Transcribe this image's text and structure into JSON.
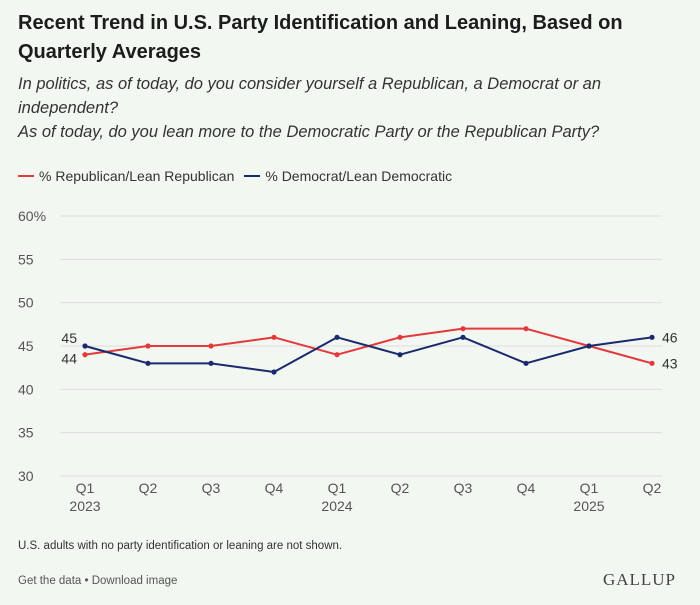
{
  "title": "Recent Trend in U.S. Party Identification and Leaning, Based on Quarterly Averages",
  "subtitle": {
    "line1": "In politics, as of today, do you consider yourself a Republican, a Democrat or an independent?",
    "line2": "As of today, do you lean more to the Democratic Party or the Republican Party?"
  },
  "legend": {
    "republican": "% Republican/Lean Republican",
    "democrat": "% Democrat/Lean Democratic"
  },
  "note": "U.S. adults with no party identification or leaning are not shown.",
  "footer": {
    "get_data": "Get the data",
    "separator": " • ",
    "download": "Download image"
  },
  "brand": "GALLUP",
  "colors": {
    "republican": "#e5383b",
    "democrat": "#1a2a6c",
    "grid": "#dcdcdc",
    "background": "#f2f7f2"
  },
  "chart_data": {
    "type": "line",
    "x": [
      "Q1",
      "Q2",
      "Q3",
      "Q4",
      "Q1",
      "Q2",
      "Q3",
      "Q4",
      "Q1",
      "Q2"
    ],
    "x_years": [
      "2023",
      "",
      "",
      "",
      "2024",
      "",
      "",
      "",
      "2025",
      ""
    ],
    "y_ticks": [
      "60%",
      "55",
      "50",
      "45",
      "40",
      "35",
      "30"
    ],
    "ylim": [
      30,
      60
    ],
    "grid": true,
    "legend_position": "top-left",
    "series": [
      {
        "name": "% Republican/Lean Republican",
        "color": "#e5383b",
        "values": [
          44,
          45,
          45,
          46,
          44,
          46,
          47,
          47,
          45,
          43
        ]
      },
      {
        "name": "% Democrat/Lean Democratic",
        "color": "#1a2a6c",
        "values": [
          45,
          43,
          43,
          42,
          46,
          44,
          46,
          43,
          45,
          46
        ]
      }
    ],
    "data_labels": [
      {
        "series": 0,
        "index": 0,
        "text": "44"
      },
      {
        "series": 1,
        "index": 0,
        "text": "45"
      },
      {
        "series": 0,
        "index": 9,
        "text": "43"
      },
      {
        "series": 1,
        "index": 9,
        "text": "46"
      }
    ]
  }
}
